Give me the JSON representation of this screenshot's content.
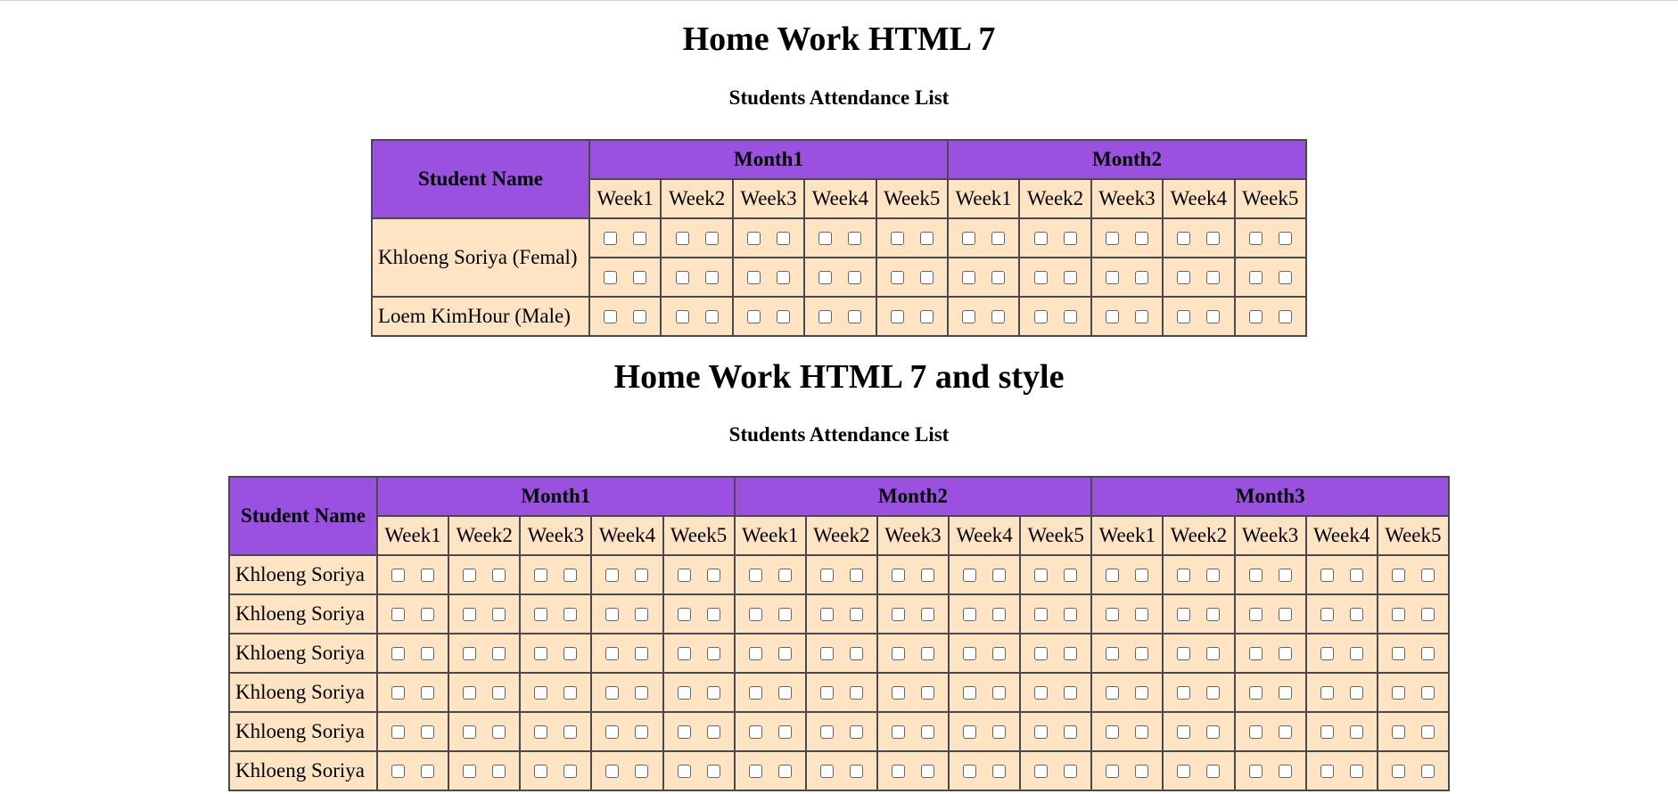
{
  "section1": {
    "title": "Home Work HTML 7",
    "subtitle": "Students Attendance List",
    "header": {
      "student_name": "Student Name",
      "months": [
        "Month1",
        "Month2"
      ]
    },
    "weeks": [
      "Week1",
      "Week2",
      "Week3",
      "Week4",
      "Week5"
    ],
    "rows": [
      {
        "name": "Khloeng Soriya (Femal)",
        "rowspan": 2
      },
      {
        "name": "Loem KimHour (Male)",
        "rowspan": 1
      }
    ]
  },
  "section2": {
    "title": "Home Work HTML 7 and style",
    "subtitle": "Students Attendance List",
    "header": {
      "student_name": "Student Name",
      "months": [
        "Month1",
        "Month2",
        "Month3"
      ]
    },
    "weeks": [
      "Week1",
      "Week2",
      "Week3",
      "Week4",
      "Week5"
    ],
    "rows": [
      {
        "name": "Khloeng Soriya"
      },
      {
        "name": "Khloeng Soriya"
      },
      {
        "name": "Khloeng Soriya"
      },
      {
        "name": "Khloeng Soriya"
      },
      {
        "name": "Khloeng Soriya"
      },
      {
        "name": "Khloeng Soriya"
      }
    ]
  },
  "colors": {
    "header_bg": "#9b51e0",
    "cell_bg": "#ffe4c4",
    "border": "#4a4a4a"
  }
}
